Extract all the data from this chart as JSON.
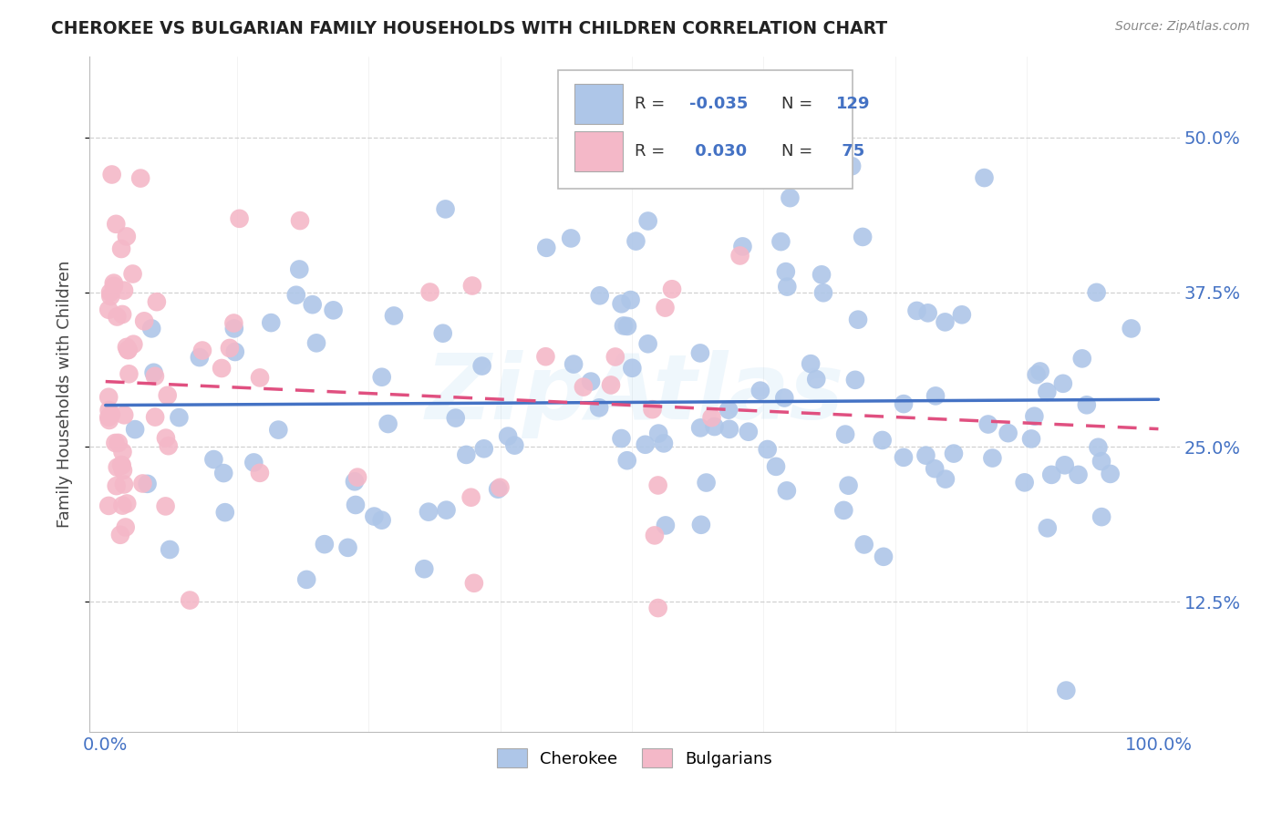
{
  "title": "CHEROKEE VS BULGARIAN FAMILY HOUSEHOLDS WITH CHILDREN CORRELATION CHART",
  "source": "Source: ZipAtlas.com",
  "ylabel": "Family Households with Children",
  "watermark": "ZipAtlas",
  "cherokee_R": -0.035,
  "cherokee_N": 129,
  "bulgarian_R": 0.03,
  "bulgarian_N": 75,
  "cherokee_color": "#aec6e8",
  "bulgarian_color": "#f4b8c8",
  "cherokee_line_color": "#4472c4",
  "bulgarian_line_color": "#e05080",
  "background_color": "#ffffff",
  "grid_color": "#cccccc",
  "yticks": [
    0.125,
    0.25,
    0.375,
    0.5
  ],
  "ytick_labels": [
    "12.5%",
    "25.0%",
    "37.5%",
    "50.0%"
  ],
  "seed": 12345
}
